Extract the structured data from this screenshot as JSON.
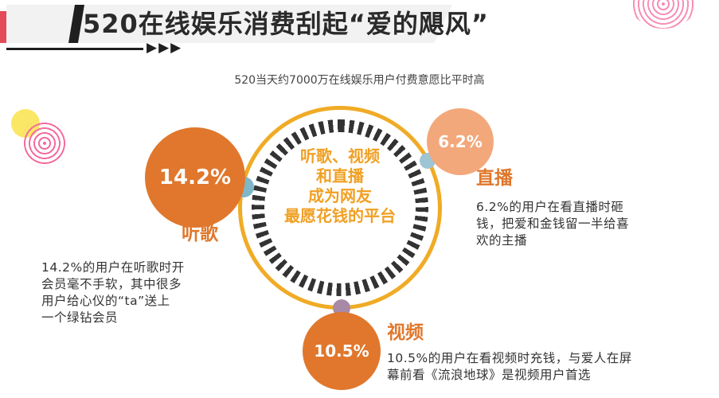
{
  "header": {
    "title": "520在线娱乐消费刮起“爱的飓风”",
    "arrows": "▶▶▶"
  },
  "subtitle": "520当天约7000万在线娱乐用户付费意愿比平时高",
  "center": {
    "lines": [
      "听歌、视频",
      "和直播",
      "成为网友",
      "最愿花钱的平台"
    ]
  },
  "segments": {
    "music": {
      "value": "14.2%",
      "label": "听歌",
      "desc": [
        "14.2%的用户在听歌时开",
        "会员毫不手软，其中很多",
        "用户给心仪的“ta”送上",
        "一个绿钻会员"
      ]
    },
    "live": {
      "value": "6.2%",
      "label": "直播",
      "desc": [
        "6.2%的用户在看直播时砸",
        "钱，把爱和金钱留一半给喜",
        "欢的主播"
      ]
    },
    "video": {
      "value": "10.5%",
      "label": "视频",
      "desc": [
        "10.5%的用户在看视频时充钱，与爱人在屏",
        "幕前看《流浪地球》是视频用户首选"
      ]
    }
  },
  "colors": {
    "accent_orange": "#e0772c",
    "ring_gold": "#f0ab26",
    "light_orange": "#f3a87b",
    "banner_red": "#e24b57"
  }
}
